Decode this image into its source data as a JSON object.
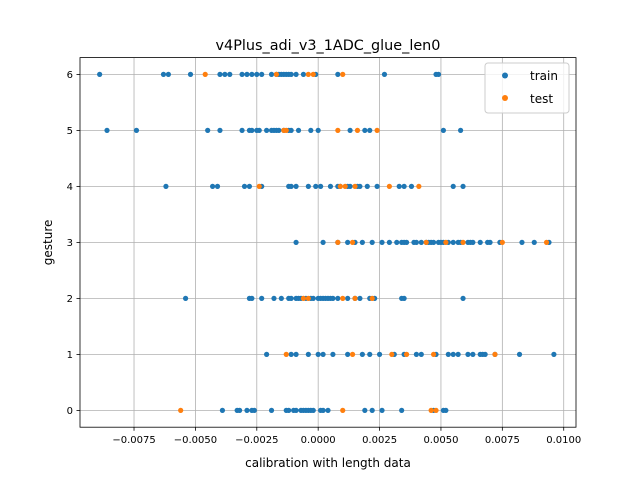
{
  "chart_data": {
    "type": "scatter",
    "title": "v4Plus_adi_v3_1ADC_glue_len0",
    "xlabel": "calibration with length data",
    "ylabel": "gesture",
    "xlim": [
      -0.0097,
      0.0105
    ],
    "ylim": [
      -0.3,
      6.3
    ],
    "x_ticks": [
      -0.0075,
      -0.005,
      -0.0025,
      0.0,
      0.0025,
      0.005,
      0.0075,
      0.01
    ],
    "x_tick_labels": [
      "−0.0075",
      "−0.0050",
      "−0.0025",
      "0.0000",
      "0.0025",
      "0.0050",
      "0.0075",
      "0.0100"
    ],
    "y_ticks": [
      0,
      1,
      2,
      3,
      4,
      5,
      6
    ],
    "y_tick_labels": [
      "0",
      "1",
      "2",
      "3",
      "4",
      "5",
      "6"
    ],
    "grid": true,
    "legend_position": "top-right",
    "colors": {
      "train": "#1f77b4",
      "test": "#ff7f0e"
    },
    "series": [
      {
        "name": "train",
        "points": [
          [
            -0.0089,
            6
          ],
          [
            -0.0063,
            6
          ],
          [
            -0.0061,
            6
          ],
          [
            -0.0052,
            6
          ],
          [
            -0.004,
            6
          ],
          [
            -0.0038,
            6
          ],
          [
            -0.0036,
            6
          ],
          [
            -0.0031,
            6
          ],
          [
            -0.0029,
            6
          ],
          [
            -0.0027,
            6
          ],
          [
            -0.0025,
            6
          ],
          [
            -0.0023,
            6
          ],
          [
            -0.0019,
            6
          ],
          [
            -0.0017,
            6
          ],
          [
            -0.0016,
            6
          ],
          [
            -0.0015,
            6
          ],
          [
            -0.0014,
            6
          ],
          [
            -0.0013,
            6
          ],
          [
            -0.0012,
            6
          ],
          [
            -0.0011,
            6
          ],
          [
            -0.0009,
            6
          ],
          [
            -0.0006,
            6
          ],
          [
            -0.0001,
            6
          ],
          [
            0.0008,
            6
          ],
          [
            0.0027,
            6
          ],
          [
            0.0048,
            6
          ],
          [
            0.0049,
            6
          ],
          [
            -0.0086,
            5
          ],
          [
            -0.0074,
            5
          ],
          [
            -0.0045,
            5
          ],
          [
            -0.004,
            5
          ],
          [
            -0.0031,
            5
          ],
          [
            -0.0028,
            5
          ],
          [
            -0.0027,
            5
          ],
          [
            -0.0025,
            5
          ],
          [
            -0.0024,
            5
          ],
          [
            -0.0021,
            5
          ],
          [
            -0.0019,
            5
          ],
          [
            -0.0018,
            5
          ],
          [
            -0.0017,
            5
          ],
          [
            -0.0016,
            5
          ],
          [
            -0.0014,
            5
          ],
          [
            -0.0012,
            5
          ],
          [
            -0.0011,
            5
          ],
          [
            -0.0008,
            5
          ],
          [
            -0.0003,
            5
          ],
          [
            0.0,
            5
          ],
          [
            0.0013,
            5
          ],
          [
            0.0019,
            5
          ],
          [
            0.0021,
            5
          ],
          [
            0.0051,
            5
          ],
          [
            0.0058,
            5
          ],
          [
            -0.0062,
            4
          ],
          [
            -0.0043,
            4
          ],
          [
            -0.0041,
            4
          ],
          [
            -0.003,
            4
          ],
          [
            -0.0028,
            4
          ],
          [
            -0.0023,
            4
          ],
          [
            -0.0012,
            4
          ],
          [
            -0.0011,
            4
          ],
          [
            -0.0009,
            4
          ],
          [
            -0.0004,
            4
          ],
          [
            -0.0001,
            4
          ],
          [
            0.0001,
            4
          ],
          [
            0.0005,
            4
          ],
          [
            0.0008,
            4
          ],
          [
            0.0009,
            4
          ],
          [
            0.0012,
            4
          ],
          [
            0.0013,
            4
          ],
          [
            0.0016,
            4
          ],
          [
            0.0017,
            4
          ],
          [
            0.002,
            4
          ],
          [
            0.0024,
            4
          ],
          [
            0.0033,
            4
          ],
          [
            0.0035,
            4
          ],
          [
            0.0038,
            4
          ],
          [
            0.0055,
            4
          ],
          [
            0.0059,
            4
          ],
          [
            -0.0009,
            3
          ],
          [
            0.0002,
            3
          ],
          [
            0.0008,
            3
          ],
          [
            0.0012,
            3
          ],
          [
            0.0015,
            3
          ],
          [
            0.0018,
            3
          ],
          [
            0.0022,
            3
          ],
          [
            0.0026,
            3
          ],
          [
            0.0029,
            3
          ],
          [
            0.0032,
            3
          ],
          [
            0.0034,
            3
          ],
          [
            0.0035,
            3
          ],
          [
            0.0036,
            3
          ],
          [
            0.0039,
            3
          ],
          [
            0.004,
            3
          ],
          [
            0.0042,
            3
          ],
          [
            0.0044,
            3
          ],
          [
            0.0045,
            3
          ],
          [
            0.0046,
            3
          ],
          [
            0.0047,
            3
          ],
          [
            0.0049,
            3
          ],
          [
            0.005,
            3
          ],
          [
            0.0051,
            3
          ],
          [
            0.0053,
            3
          ],
          [
            0.0055,
            3
          ],
          [
            0.0057,
            3
          ],
          [
            0.0058,
            3
          ],
          [
            0.0061,
            3
          ],
          [
            0.0062,
            3
          ],
          [
            0.0063,
            3
          ],
          [
            0.0066,
            3
          ],
          [
            0.0069,
            3
          ],
          [
            0.007,
            3
          ],
          [
            0.0074,
            3
          ],
          [
            0.0083,
            3
          ],
          [
            0.0088,
            3
          ],
          [
            0.0094,
            3
          ],
          [
            -0.0054,
            2
          ],
          [
            -0.0028,
            2
          ],
          [
            -0.0027,
            2
          ],
          [
            -0.0023,
            2
          ],
          [
            -0.0018,
            2
          ],
          [
            -0.0015,
            2
          ],
          [
            -0.0012,
            2
          ],
          [
            -0.0011,
            2
          ],
          [
            -0.0009,
            2
          ],
          [
            -0.0008,
            2
          ],
          [
            -0.0007,
            2
          ],
          [
            -0.0005,
            2
          ],
          [
            -0.0003,
            2
          ],
          [
            -0.0002,
            2
          ],
          [
            0.0,
            2
          ],
          [
            0.0001,
            2
          ],
          [
            0.0002,
            2
          ],
          [
            0.0003,
            2
          ],
          [
            0.0004,
            2
          ],
          [
            0.0005,
            2
          ],
          [
            0.0006,
            2
          ],
          [
            0.0008,
            2
          ],
          [
            0.0012,
            2
          ],
          [
            0.0015,
            2
          ],
          [
            0.0017,
            2
          ],
          [
            0.0021,
            2
          ],
          [
            0.0023,
            2
          ],
          [
            0.0034,
            2
          ],
          [
            0.0035,
            2
          ],
          [
            0.0059,
            2
          ],
          [
            -0.0021,
            1
          ],
          [
            -0.0011,
            1
          ],
          [
            -0.0009,
            1
          ],
          [
            -0.0004,
            1
          ],
          [
            0.0,
            1
          ],
          [
            0.0002,
            1
          ],
          [
            0.0006,
            1
          ],
          [
            0.0012,
            1
          ],
          [
            0.0018,
            1
          ],
          [
            0.0021,
            1
          ],
          [
            0.0025,
            1
          ],
          [
            0.0031,
            1
          ],
          [
            0.0035,
            1
          ],
          [
            0.004,
            1
          ],
          [
            0.0042,
            1
          ],
          [
            0.0048,
            1
          ],
          [
            0.0053,
            1
          ],
          [
            0.0055,
            1
          ],
          [
            0.0057,
            1
          ],
          [
            0.0061,
            1
          ],
          [
            0.0063,
            1
          ],
          [
            0.0066,
            1
          ],
          [
            0.0067,
            1
          ],
          [
            0.0068,
            1
          ],
          [
            0.0072,
            1
          ],
          [
            0.0082,
            1
          ],
          [
            0.0096,
            1
          ],
          [
            -0.0039,
            0
          ],
          [
            -0.0033,
            0
          ],
          [
            -0.0032,
            0
          ],
          [
            -0.0029,
            0
          ],
          [
            -0.0027,
            0
          ],
          [
            -0.0026,
            0
          ],
          [
            -0.0019,
            0
          ],
          [
            -0.0013,
            0
          ],
          [
            -0.0012,
            0
          ],
          [
            -0.001,
            0
          ],
          [
            -0.0009,
            0
          ],
          [
            -0.0007,
            0
          ],
          [
            -0.0006,
            0
          ],
          [
            -0.0005,
            0
          ],
          [
            -0.0004,
            0
          ],
          [
            -0.0003,
            0
          ],
          [
            -0.0002,
            0
          ],
          [
            0.0001,
            0
          ],
          [
            0.0002,
            0
          ],
          [
            0.0004,
            0
          ],
          [
            0.0019,
            0
          ],
          [
            0.0022,
            0
          ],
          [
            0.0026,
            0
          ],
          [
            0.0034,
            0
          ],
          [
            0.0047,
            0
          ],
          [
            0.0051,
            0
          ],
          [
            0.0052,
            0
          ]
        ]
      },
      {
        "name": "test",
        "points": [
          [
            -0.0046,
            6
          ],
          [
            -0.0017,
            6
          ],
          [
            -0.0004,
            6
          ],
          [
            -0.0002,
            6
          ],
          [
            0.001,
            6
          ],
          [
            -0.0013,
            5
          ],
          [
            -0.0014,
            5
          ],
          [
            0.0008,
            5
          ],
          [
            0.0016,
            5
          ],
          [
            0.0024,
            5
          ],
          [
            -0.0024,
            4
          ],
          [
            0.0009,
            4
          ],
          [
            0.0011,
            4
          ],
          [
            0.0015,
            4
          ],
          [
            0.0029,
            4
          ],
          [
            0.0041,
            4
          ],
          [
            0.0008,
            3
          ],
          [
            0.0014,
            3
          ],
          [
            0.0044,
            3
          ],
          [
            0.0052,
            3
          ],
          [
            0.0059,
            3
          ],
          [
            0.0075,
            3
          ],
          [
            0.0093,
            3
          ],
          [
            -0.0006,
            2
          ],
          [
            -0.0004,
            2
          ],
          [
            0.001,
            2
          ],
          [
            0.0015,
            2
          ],
          [
            0.0022,
            2
          ],
          [
            -0.0013,
            1
          ],
          [
            0.0014,
            1
          ],
          [
            0.003,
            1
          ],
          [
            0.0036,
            1
          ],
          [
            0.0047,
            1
          ],
          [
            0.0072,
            1
          ],
          [
            -0.0056,
            0
          ],
          [
            0.001,
            0
          ],
          [
            0.0046,
            0
          ],
          [
            0.0048,
            0
          ]
        ]
      }
    ]
  }
}
